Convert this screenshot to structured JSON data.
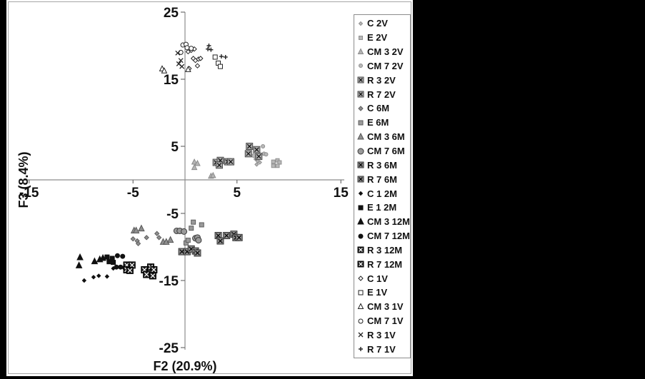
{
  "figure": {
    "background": "#ffffff",
    "canvas_background": "#000000",
    "frame_color": "#a6a6a6",
    "axis_color": "#8c8c8c",
    "text_color": "#111111"
  },
  "chart_data": {
    "type": "scatter",
    "title": "",
    "xlabel": "F2 (20.9%)",
    "ylabel": "F3 (8.4%)",
    "xlim": [
      -15,
      15
    ],
    "ylim": [
      -25,
      25
    ],
    "x_ticks": [
      -15,
      -5,
      5,
      15
    ],
    "y_ticks": [
      25,
      15,
      5,
      -5,
      -15,
      -25
    ],
    "grid": false,
    "legend_position": "right",
    "series": [
      {
        "name": "C 2V",
        "marker": "diamond",
        "fill": "#b8b8b8",
        "edge": "#8f8f8f",
        "inner": "#111111",
        "size": 5,
        "points": [
          [
            6.8,
            3.1
          ],
          [
            7.0,
            2.8
          ],
          [
            7.2,
            2.6
          ],
          [
            6.9,
            2.3
          ]
        ]
      },
      {
        "name": "E 2V",
        "marker": "square",
        "fill": "#b8b8b8",
        "edge": "#8f8f8f",
        "inner": "#111111",
        "size": 5,
        "points": [
          [
            8.5,
            2.7
          ],
          [
            8.9,
            2.9
          ],
          [
            9.1,
            2.6
          ],
          [
            8.5,
            2.1
          ],
          [
            8.9,
            2.1
          ]
        ]
      },
      {
        "name": "CM 3 2V",
        "marker": "triangle",
        "fill": "#b5b5b5",
        "edge": "#8a8a8a",
        "inner": "#111111",
        "size": 7,
        "points": [
          [
            0.9,
            2.6
          ],
          [
            1.2,
            2.4
          ],
          [
            0.9,
            1.8
          ],
          [
            2.5,
            0.5
          ],
          [
            2.7,
            0.6
          ]
        ]
      },
      {
        "name": "CM 7 2V",
        "marker": "circle",
        "fill": "#b8b8b8",
        "edge": "#8f8f8f",
        "inner": "#111111",
        "size": 5,
        "points": [
          [
            7.5,
            5.0
          ],
          [
            7.6,
            3.9
          ],
          [
            7.8,
            3.8
          ],
          [
            6.6,
            3.6
          ]
        ]
      },
      {
        "name": "R 3 2V",
        "marker": "boxed-x",
        "fill": "#ababab",
        "edge": "#4a4a4a",
        "inner": "#111111",
        "size": 9,
        "points": [
          [
            3.0,
            2.6
          ],
          [
            3.4,
            2.9
          ],
          [
            3.3,
            2.2
          ],
          [
            4.1,
            2.7
          ],
          [
            4.4,
            2.7
          ]
        ]
      },
      {
        "name": "R 7 2V",
        "marker": "boxed-x",
        "fill": "#ababab",
        "edge": "#4a4a4a",
        "inner": "#111111",
        "size": 9,
        "points": [
          [
            6.2,
            5.0
          ],
          [
            6.9,
            4.5
          ],
          [
            6.1,
            3.9
          ],
          [
            7.1,
            3.5
          ]
        ]
      },
      {
        "name": "C 6M",
        "marker": "diamond",
        "fill": "#8f8f8f",
        "edge": "#5e5e5e",
        "inner": "#111111",
        "size": 6,
        "points": [
          [
            -5.0,
            -8.8
          ],
          [
            -4.6,
            -9.1
          ],
          [
            -4.5,
            -9.5
          ],
          [
            -3.7,
            -8.6
          ],
          [
            -2.7,
            -8.0
          ],
          [
            -2.5,
            -8.6
          ]
        ]
      },
      {
        "name": "E 6M",
        "marker": "square",
        "fill": "#9a9a9a",
        "edge": "#5e5e5e",
        "inner": "#111111",
        "size": 6,
        "points": [
          [
            0.8,
            -6.3
          ],
          [
            1.6,
            -6.7
          ],
          [
            0.6,
            -7.2
          ],
          [
            0.1,
            -9.4
          ],
          [
            0.3,
            -9.0
          ]
        ]
      },
      {
        "name": "CM 3 6M",
        "marker": "triangle",
        "fill": "#8f8f8f",
        "edge": "#565656",
        "inner": "#111111",
        "size": 8,
        "points": [
          [
            -4.9,
            -7.6
          ],
          [
            -4.7,
            -7.6
          ],
          [
            -4.2,
            -7.3
          ],
          [
            -2.1,
            -9.3
          ],
          [
            -1.8,
            -9.3
          ],
          [
            -1.4,
            -9.0
          ]
        ]
      },
      {
        "name": "CM 7 6M",
        "marker": "circle",
        "fill": "#9a9a9a",
        "edge": "#3a3a3a",
        "inner": "#111111",
        "size": 8,
        "points": [
          [
            -0.8,
            -7.6
          ],
          [
            -0.5,
            -7.6
          ],
          [
            -0.1,
            -7.7
          ],
          [
            1.0,
            -8.7
          ],
          [
            1.2,
            -8.6
          ],
          [
            1.3,
            -9.0
          ]
        ]
      },
      {
        "name": "R 3 6M",
        "marker": "boxed-x",
        "fill": "#8f8f8f",
        "edge": "#333333",
        "inner": "#000000",
        "size": 9,
        "points": [
          [
            -0.3,
            -10.7
          ],
          [
            0.2,
            -10.7
          ],
          [
            0.6,
            -10.3
          ],
          [
            1.0,
            -10.6
          ],
          [
            1.2,
            -10.9
          ]
        ]
      },
      {
        "name": "R 7 6M",
        "marker": "boxed-x",
        "fill": "#8f8f8f",
        "edge": "#333333",
        "inner": "#000000",
        "size": 9,
        "points": [
          [
            3.2,
            -8.3
          ],
          [
            3.4,
            -9.1
          ],
          [
            4.0,
            -8.3
          ],
          [
            4.7,
            -8.1
          ],
          [
            4.9,
            -8.6
          ],
          [
            5.2,
            -8.6
          ]
        ]
      },
      {
        "name": "C 1 2M",
        "marker": "diamond",
        "fill": "#111111",
        "edge": "#111111",
        "inner": "#ffffff",
        "size": 5,
        "points": [
          [
            -9.7,
            -15.0
          ],
          [
            -8.8,
            -14.5
          ],
          [
            -8.3,
            -14.3
          ],
          [
            -7.5,
            -14.4
          ],
          [
            -6.9,
            -13.2
          ]
        ]
      },
      {
        "name": "E 1 2M",
        "marker": "square",
        "fill": "#111111",
        "edge": "#111111",
        "inner": "#ffffff",
        "size": 6,
        "points": [
          [
            -7.5,
            -11.5
          ],
          [
            -7.0,
            -11.7
          ],
          [
            -7.3,
            -12.2
          ],
          [
            -6.9,
            -12.3
          ]
        ]
      },
      {
        "name": "CM 3 12M",
        "marker": "triangle",
        "fill": "#111111",
        "edge": "#111111",
        "inner": "#ffffff",
        "size": 8,
        "points": [
          [
            -10.1,
            -11.6
          ],
          [
            -10.2,
            -12.8
          ],
          [
            -8.7,
            -12.2
          ],
          [
            -8.2,
            -11.9
          ],
          [
            -7.9,
            -11.7
          ]
        ]
      },
      {
        "name": "CM 7 12M",
        "marker": "circle",
        "fill": "#111111",
        "edge": "#111111",
        "inner": "#ffffff",
        "size": 6,
        "points": [
          [
            -6.5,
            -11.3
          ],
          [
            -6.0,
            -11.4
          ],
          [
            -6.6,
            -13.0
          ],
          [
            -6.2,
            -13.0
          ],
          [
            -5.8,
            -13.1
          ]
        ]
      },
      {
        "name": "R 3 12M",
        "marker": "boxed-x",
        "fill": "#1a1a1a",
        "edge": "#000000",
        "inner": "#ffffff",
        "size": 9,
        "points": [
          [
            -5.6,
            -12.7
          ],
          [
            -5.1,
            -12.7
          ],
          [
            -5.6,
            -13.4
          ],
          [
            -5.3,
            -13.5
          ]
        ]
      },
      {
        "name": "R 7 12M",
        "marker": "boxed-x",
        "fill": "#1a1a1a",
        "edge": "#000000",
        "inner": "#ffffff",
        "size": 9,
        "points": [
          [
            -3.9,
            -13.4
          ],
          [
            -3.3,
            -13.0
          ],
          [
            -3.0,
            -13.4
          ],
          [
            -3.7,
            -14.1
          ],
          [
            -3.1,
            -14.3
          ]
        ]
      },
      {
        "name": "C 1V",
        "marker": "diamond",
        "fill": "#ffffff",
        "edge": "#222222",
        "inner": "#222222",
        "size": 6,
        "points": [
          [
            0.3,
            19.1
          ],
          [
            0.6,
            19.3
          ],
          [
            0.9,
            19.5
          ],
          [
            0.8,
            18.1
          ],
          [
            1.0,
            17.8
          ],
          [
            1.3,
            18.0
          ],
          [
            1.5,
            18.1
          ],
          [
            1.2,
            17.0
          ],
          [
            0.4,
            16.6
          ]
        ]
      },
      {
        "name": "E 1V",
        "marker": "square",
        "fill": "#ffffff",
        "edge": "#222222",
        "inner": "#222222",
        "size": 6,
        "points": [
          [
            2.9,
            18.3
          ],
          [
            3.2,
            17.4
          ],
          [
            3.4,
            16.9
          ]
        ]
      },
      {
        "name": "CM 3 1V",
        "marker": "triangle",
        "fill": "#ffffff",
        "edge": "#222222",
        "inner": "#222222",
        "size": 7,
        "points": [
          [
            -2.2,
            16.5
          ],
          [
            -2.0,
            16.2
          ],
          [
            0.3,
            16.4
          ]
        ]
      },
      {
        "name": "CM 7 1V",
        "marker": "circle",
        "fill": "#ffffff",
        "edge": "#222222",
        "inner": "#222222",
        "size": 6,
        "points": [
          [
            -0.2,
            20.1
          ],
          [
            0.1,
            20.2
          ],
          [
            0.2,
            19.7
          ],
          [
            0.6,
            19.6
          ],
          [
            -0.4,
            19.0
          ]
        ]
      },
      {
        "name": "R 3 1V",
        "marker": "x",
        "fill": "none",
        "edge": "#222222",
        "inner": "#222222",
        "size": 6,
        "points": [
          [
            -0.7,
            18.9
          ],
          [
            -0.4,
            17.8
          ],
          [
            -0.6,
            17.3
          ],
          [
            -0.3,
            16.9
          ]
        ]
      },
      {
        "name": "R 7 1V",
        "marker": "plus",
        "fill": "none",
        "edge": "#222222",
        "inner": "#222222",
        "size": 6,
        "points": [
          [
            2.3,
            20.0
          ],
          [
            2.2,
            19.5
          ],
          [
            2.5,
            19.4
          ],
          [
            3.5,
            18.4
          ],
          [
            3.9,
            18.3
          ]
        ]
      }
    ]
  }
}
